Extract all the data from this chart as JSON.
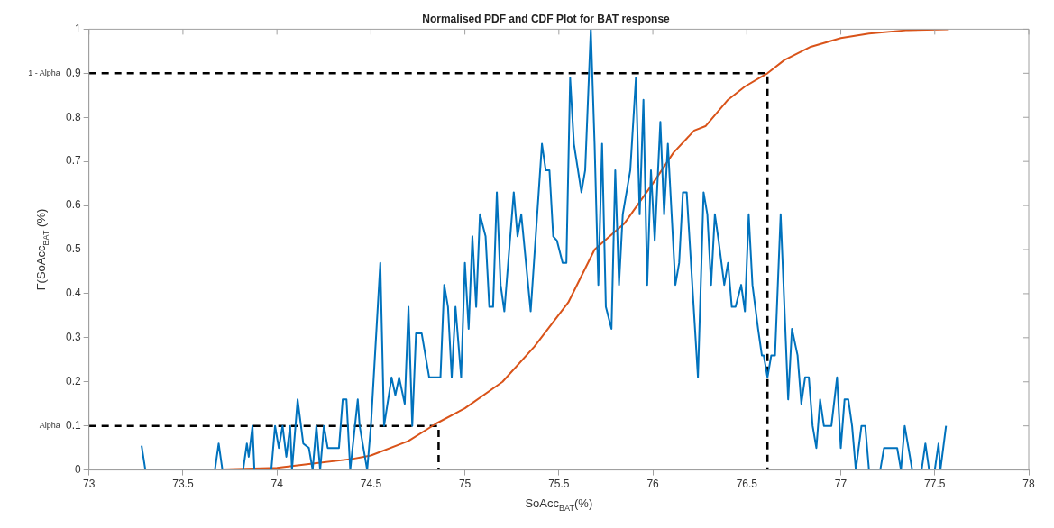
{
  "chart_data": {
    "type": "line",
    "title": "Normalised PDF and CDF Plot for BAT response",
    "xlabel": "SoAcc$_{BAT}$(%)",
    "ylabel": "F(SoAcc$_{BAT}$ (%)",
    "xlim": [
      73,
      78
    ],
    "xticks": [
      73,
      73.5,
      74,
      74.5,
      75,
      75.5,
      76,
      76.5,
      77,
      77.5,
      78
    ],
    "ylim": [
      0,
      1
    ],
    "yticks": [
      0,
      0.1,
      0.2,
      0.3,
      0.4,
      0.5,
      0.6,
      0.7,
      0.8,
      0.9,
      1
    ],
    "annotations": [
      "1 - Alpha",
      "Alpha"
    ],
    "grid": false,
    "legend": false,
    "marker": "none",
    "line_style": "solid",
    "series": [
      {
        "color": "#0072bd",
        "x": [
          73.28,
          73.3,
          73.67,
          73.69,
          73.71,
          73.82,
          73.84,
          73.85,
          73.87,
          73.88,
          73.91,
          73.97,
          73.99,
          74.01,
          74.03,
          74.05,
          74.07,
          74.08,
          74.11,
          74.14,
          74.17,
          74.19,
          74.21,
          74.23,
          74.25,
          74.27,
          74.33,
          74.35,
          74.37,
          74.39,
          74.43,
          74.44,
          74.48,
          74.5,
          74.55,
          74.57,
          74.61,
          74.63,
          74.65,
          74.68,
          74.7,
          74.72,
          74.74,
          74.77,
          74.81,
          74.87,
          74.89,
          74.91,
          74.93,
          74.95,
          74.98,
          75,
          75.02,
          75.04,
          75.06,
          75.08,
          75.11,
          75.13,
          75.15,
          75.17,
          75.19,
          75.21,
          75.26,
          75.28,
          75.3,
          75.35,
          75.41,
          75.43,
          75.45,
          75.47,
          75.49,
          75.52,
          75.54,
          75.56,
          75.58,
          75.62,
          75.64,
          75.67,
          75.69,
          75.71,
          75.73,
          75.75,
          75.78,
          75.8,
          75.82,
          75.84,
          75.86,
          75.88,
          75.91,
          75.93,
          75.95,
          75.97,
          75.99,
          76.01,
          76.04,
          76.06,
          76.08,
          76.1,
          76.12,
          76.14,
          76.16,
          76.18,
          76.21,
          76.24,
          76.27,
          76.29,
          76.31,
          76.33,
          76.35,
          76.38,
          76.4,
          76.42,
          76.44,
          76.47,
          76.49,
          76.51,
          76.53,
          76.56,
          76.58,
          76.59,
          76.61,
          76.63,
          76.65,
          76.68,
          76.7,
          76.72,
          76.74,
          76.77,
          76.79,
          76.81,
          76.83,
          76.85,
          76.87,
          76.89,
          76.91,
          76.95,
          76.98,
          77,
          77.02,
          77.04,
          77.06,
          77.08,
          77.11,
          77.13,
          77.15,
          77.21,
          77.23,
          77.3,
          77.32,
          77.34,
          77.36,
          77.38,
          77.43,
          77.45,
          77.47,
          77.5,
          77.52,
          77.53,
          77.56
        ],
        "values": [
          0.055,
          0,
          0,
          0.06,
          0,
          0,
          0.06,
          0.03,
          0.1,
          0,
          0,
          0,
          0.1,
          0.05,
          0.1,
          0.03,
          0.1,
          0,
          0.16,
          0.06,
          0.05,
          0,
          0.1,
          0,
          0.1,
          0.05,
          0.05,
          0.16,
          0.16,
          0,
          0.16,
          0.1,
          0,
          0.1,
          0.47,
          0.1,
          0.21,
          0.17,
          0.21,
          0.15,
          0.37,
          0.1,
          0.31,
          0.31,
          0.21,
          0.21,
          0.42,
          0.37,
          0.21,
          0.37,
          0.21,
          0.47,
          0.32,
          0.53,
          0.37,
          0.58,
          0.53,
          0.37,
          0.37,
          0.63,
          0.42,
          0.36,
          0.63,
          0.53,
          0.58,
          0.36,
          0.74,
          0.68,
          0.68,
          0.53,
          0.52,
          0.47,
          0.47,
          0.89,
          0.74,
          0.63,
          0.68,
          1,
          0.74,
          0.42,
          0.74,
          0.37,
          0.32,
          0.68,
          0.42,
          0.58,
          0.63,
          0.68,
          0.89,
          0.58,
          0.84,
          0.42,
          0.68,
          0.52,
          0.79,
          0.58,
          0.74,
          0.58,
          0.42,
          0.47,
          0.63,
          0.63,
          0.42,
          0.21,
          0.63,
          0.58,
          0.42,
          0.58,
          0.52,
          0.42,
          0.47,
          0.37,
          0.37,
          0.42,
          0.36,
          0.58,
          0.42,
          0.32,
          0.26,
          0.26,
          0.21,
          0.26,
          0.26,
          0.58,
          0.37,
          0.16,
          0.32,
          0.26,
          0.15,
          0.21,
          0.21,
          0.1,
          0.05,
          0.16,
          0.1,
          0.1,
          0.21,
          0.05,
          0.16,
          0.16,
          0.1,
          0,
          0.1,
          0.1,
          0,
          0,
          0.05,
          0.05,
          0,
          0.1,
          0.05,
          0,
          0,
          0.06,
          0,
          0,
          0.06,
          0,
          0.1
        ]
      },
      {
        "color": "#d95319",
        "x": [
          73.3,
          73.6,
          74,
          74.2,
          74.4,
          74.5,
          74.7,
          74.85,
          75,
          75.2,
          75.37,
          75.55,
          75.69,
          75.85,
          76,
          76.11,
          76.22,
          76.28,
          76.4,
          76.49,
          76.57,
          76.61,
          76.7,
          76.84,
          77,
          77.15,
          77.36,
          77.57
        ],
        "values": [
          0,
          0,
          0.005,
          0.015,
          0.025,
          0.033,
          0.066,
          0.106,
          0.14,
          0.2,
          0.28,
          0.38,
          0.5,
          0.56,
          0.65,
          0.72,
          0.77,
          0.78,
          0.84,
          0.87,
          0.89,
          0.9,
          0.93,
          0.96,
          0.98,
          0.99,
          0.998,
          1
        ]
      },
      {
        "color": "#000000",
        "line_style": "dashed",
        "x": [
          73,
          76.61,
          76.61
        ],
        "values": [
          0.9,
          0.9,
          0
        ]
      },
      {
        "color": "#000000",
        "line_style": "dashed",
        "x": [
          73,
          74.86,
          74.86
        ],
        "values": [
          0.1,
          0.1,
          0
        ]
      }
    ]
  }
}
